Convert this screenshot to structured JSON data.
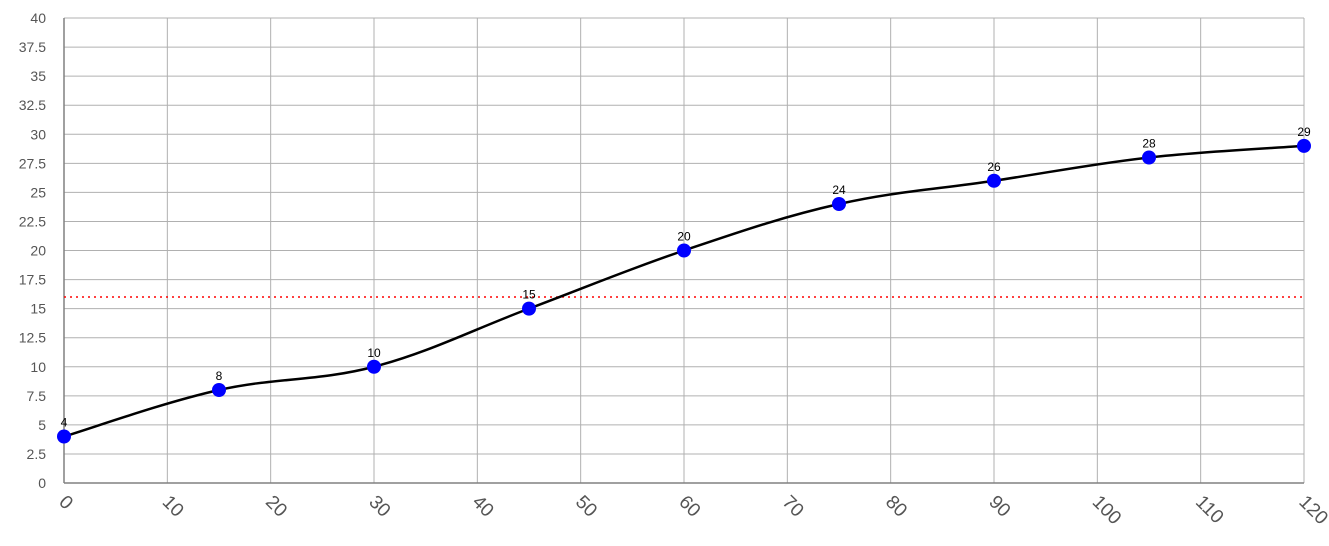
{
  "chart_data": {
    "type": "line",
    "title": "",
    "xlabel": "",
    "ylabel": "",
    "xlim": [
      0,
      120
    ],
    "ylim": [
      0,
      40
    ],
    "x_ticks": [
      0,
      10,
      20,
      30,
      40,
      50,
      60,
      70,
      80,
      90,
      100,
      110,
      120
    ],
    "y_ticks": [
      0,
      2.5,
      5,
      7.5,
      10,
      12.5,
      15,
      17.5,
      20,
      22.5,
      25,
      27.5,
      30,
      32.5,
      35,
      37.5,
      40
    ],
    "grid": true,
    "legend": "none",
    "series": [
      {
        "x": [
          0,
          15,
          30,
          45,
          60,
          75,
          90,
          105,
          120
        ],
        "y": [
          4,
          8,
          10,
          15,
          20,
          24,
          26,
          28,
          29
        ],
        "data_labels": [
          "4",
          "8",
          "10",
          "15",
          "20",
          "24",
          "26",
          "28",
          "29"
        ],
        "line_color": "#000000",
        "marker_color": "#0000ff",
        "smooth": true
      }
    ],
    "reference_line": {
      "y": 16,
      "color": "#ff0000",
      "style": "dotted"
    }
  }
}
